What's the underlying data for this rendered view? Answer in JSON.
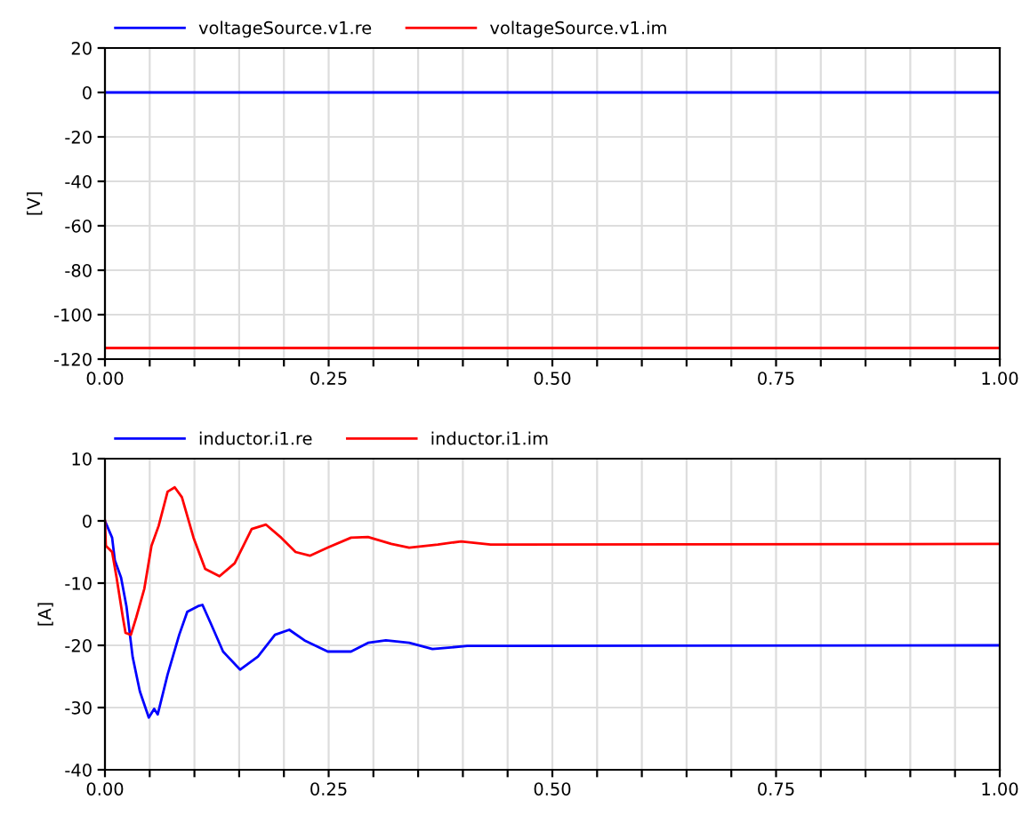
{
  "chart_data": [
    {
      "type": "line",
      "ylabel": "[V]",
      "legend": "top left",
      "grid": true,
      "marker": "none",
      "line_style": "solid",
      "xlim": [
        0,
        1
      ],
      "ylim": [
        -120,
        20
      ],
      "xticks": [
        {
          "value": 0,
          "label": "0.00"
        },
        {
          "value": 0.05,
          "label": null
        },
        {
          "value": 0.1,
          "label": null
        },
        {
          "value": 0.15,
          "label": null
        },
        {
          "value": 0.2,
          "label": null
        },
        {
          "value": 0.25,
          "label": "0.25"
        },
        {
          "value": 0.3,
          "label": null
        },
        {
          "value": 0.35,
          "label": null
        },
        {
          "value": 0.4,
          "label": null
        },
        {
          "value": 0.45,
          "label": null
        },
        {
          "value": 0.5,
          "label": "0.50"
        },
        {
          "value": 0.55,
          "label": null
        },
        {
          "value": 0.6,
          "label": null
        },
        {
          "value": 0.65,
          "label": null
        },
        {
          "value": 0.7,
          "label": null
        },
        {
          "value": 0.75,
          "label": "0.75"
        },
        {
          "value": 0.8,
          "label": null
        },
        {
          "value": 0.85,
          "label": null
        },
        {
          "value": 0.9,
          "label": null
        },
        {
          "value": 0.95,
          "label": null
        },
        {
          "value": 1,
          "label": "1.00"
        }
      ],
      "yticks": [
        20,
        0,
        -20,
        -40,
        -60,
        -80,
        -100,
        -120
      ],
      "series": [
        {
          "name": "voltageSource.v1.re",
          "color": "#0000ff",
          "x": [
            0,
            1
          ],
          "values": [
            0,
            0
          ]
        },
        {
          "name": "voltageSource.v1.im",
          "color": "#ff0000",
          "x": [
            0,
            1
          ],
          "values": [
            -115,
            -115
          ]
        }
      ]
    },
    {
      "type": "line",
      "ylabel": "[A]",
      "legend": "top left",
      "grid": true,
      "marker": "none",
      "line_style": "solid",
      "xlim": [
        0,
        1
      ],
      "ylim": [
        -40,
        10
      ],
      "xticks": [
        {
          "value": 0,
          "label": "0.00"
        },
        {
          "value": 0.05,
          "label": null
        },
        {
          "value": 0.1,
          "label": null
        },
        {
          "value": 0.15,
          "label": null
        },
        {
          "value": 0.2,
          "label": null
        },
        {
          "value": 0.25,
          "label": "0.25"
        },
        {
          "value": 0.3,
          "label": null
        },
        {
          "value": 0.35,
          "label": null
        },
        {
          "value": 0.4,
          "label": null
        },
        {
          "value": 0.45,
          "label": null
        },
        {
          "value": 0.5,
          "label": "0.50"
        },
        {
          "value": 0.55,
          "label": null
        },
        {
          "value": 0.6,
          "label": null
        },
        {
          "value": 0.65,
          "label": null
        },
        {
          "value": 0.7,
          "label": null
        },
        {
          "value": 0.75,
          "label": "0.75"
        },
        {
          "value": 0.8,
          "label": null
        },
        {
          "value": 0.85,
          "label": null
        },
        {
          "value": 0.9,
          "label": null
        },
        {
          "value": 0.95,
          "label": null
        },
        {
          "value": 1,
          "label": "1.00"
        }
      ],
      "yticks": [
        10,
        0,
        -10,
        -20,
        -30,
        -40
      ],
      "series": [
        {
          "name": "inductor.i1.re",
          "color": "#0000ff",
          "x": [
            0,
            0.005,
            0.008,
            0.011,
            0.018,
            0.024,
            0.031,
            0.039,
            0.049,
            0.055,
            0.059,
            0.07,
            0.083,
            0.092,
            0.104,
            0.109,
            0.118,
            0.132,
            0.151,
            0.171,
            0.19,
            0.206,
            0.223,
            0.249,
            0.275,
            0.294,
            0.314,
            0.34,
            0.366,
            0.405,
            0.457,
            1
          ],
          "values": [
            0,
            -1.7,
            -2.7,
            -6.3,
            -9.1,
            -13.7,
            -21.9,
            -27.4,
            -31.6,
            -30.2,
            -31.1,
            -24.7,
            -18.3,
            -14.6,
            -13.7,
            -13.5,
            -16.4,
            -21,
            -23.9,
            -21.8,
            -18.3,
            -17.5,
            -19.2,
            -21,
            -21,
            -19.6,
            -19.2,
            -19.6,
            -20.6,
            -20.1,
            -20.1,
            -20
          ]
        },
        {
          "name": "inductor.i1.im",
          "color": "#ff0000",
          "x": [
            0,
            0.001,
            0.008,
            0.013,
            0.02,
            0.023,
            0.029,
            0.035,
            0.044,
            0.052,
            0.06,
            0.07,
            0.078,
            0.086,
            0.099,
            0.112,
            0.128,
            0.145,
            0.164,
            0.18,
            0.197,
            0.213,
            0.229,
            0.249,
            0.275,
            0.294,
            0.32,
            0.34,
            0.372,
            0.398,
            0.431,
            0.457,
            1
          ],
          "values": [
            0,
            -4,
            -5,
            -9.1,
            -15.5,
            -18,
            -18.3,
            -15.5,
            -10.9,
            -4,
            -0.8,
            4.7,
            5.4,
            3.8,
            -2.7,
            -7.7,
            -8.9,
            -6.8,
            -1.3,
            -0.6,
            -2.7,
            -5,
            -5.6,
            -4.3,
            -2.7,
            -2.6,
            -3.7,
            -4.3,
            -3.8,
            -3.3,
            -3.8,
            -3.8,
            -3.7
          ]
        }
      ]
    }
  ]
}
